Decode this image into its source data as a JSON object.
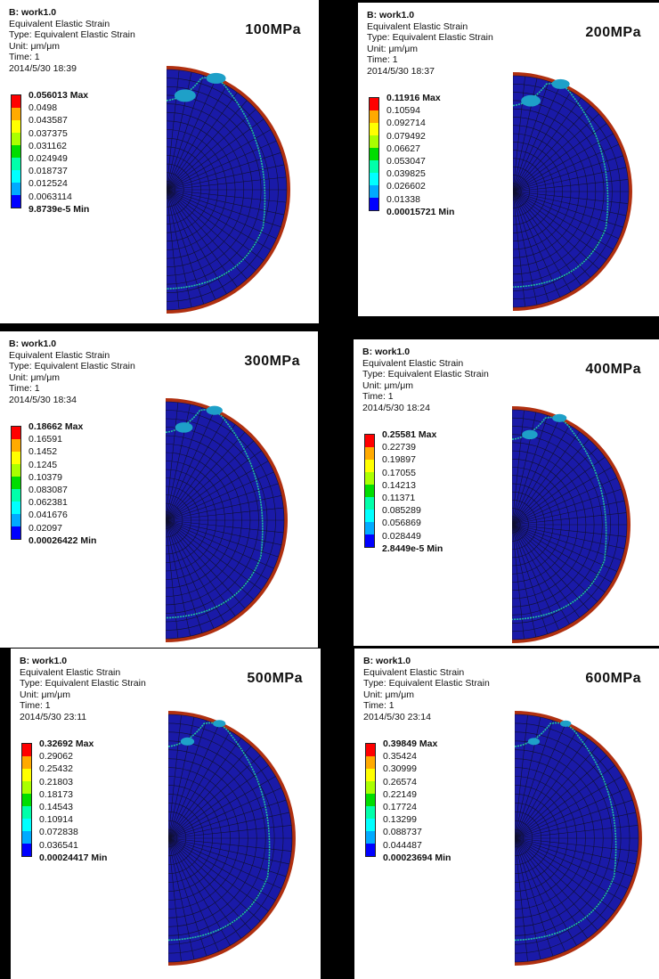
{
  "header": {
    "result": "B: work1.0",
    "name": "Equivalent Elastic Strain",
    "type": "Type: Equivalent Elastic Strain",
    "unit": "Unit: μm/μm",
    "time": "Time: 1"
  },
  "legend_colors": [
    "#ff0000",
    "#ffaa00",
    "#ffff00",
    "#aaff00",
    "#00dd00",
    "#00ffaa",
    "#00ffff",
    "#00aaff",
    "#0000ff"
  ],
  "mesh_colors": {
    "body": "#1a1aa8",
    "rim": "#b03010",
    "band": "#20c0a0",
    "hotspot": "#1ea0c8",
    "line": "#101030"
  },
  "panels": [
    {
      "label": "100MPa",
      "date": "2014/5/30 18:39",
      "max": "0.056013 Max",
      "levels": [
        "0.0498",
        "0.043587",
        "0.037375",
        "0.031162",
        "0.024949",
        "0.018737",
        "0.012524",
        "0.0063114"
      ],
      "min": "9.8739e-5 Min"
    },
    {
      "label": "200MPa",
      "date": "2014/5/30 18:37",
      "max": "0.11916 Max",
      "levels": [
        "0.10594",
        "0.092714",
        "0.079492",
        "0.06627",
        "0.053047",
        "0.039825",
        "0.026602",
        "0.01338"
      ],
      "min": "0.00015721 Min"
    },
    {
      "label": "300MPa",
      "date": "2014/5/30 18:34",
      "max": "0.18662 Max",
      "levels": [
        "0.16591",
        "0.1452",
        "0.1245",
        "0.10379",
        "0.083087",
        "0.062381",
        "0.041676",
        "0.02097"
      ],
      "min": "0.00026422 Min"
    },
    {
      "label": "400MPa",
      "date": "2014/5/30 18:24",
      "max": "0.25581 Max",
      "levels": [
        "0.22739",
        "0.19897",
        "0.17055",
        "0.14213",
        "0.11371",
        "0.085289",
        "0.056869",
        "0.028449"
      ],
      "min": "2.8449e-5 Min"
    },
    {
      "label": "500MPa",
      "date": "2014/5/30 23:11",
      "max": "0.32692 Max",
      "levels": [
        "0.29062",
        "0.25432",
        "0.21803",
        "0.18173",
        "0.14543",
        "0.10914",
        "0.072838",
        "0.036541"
      ],
      "min": "0.00024417 Min"
    },
    {
      "label": "600MPa",
      "date": "2014/5/30 23:14",
      "max": "0.39849 Max",
      "levels": [
        "0.35424",
        "0.30999",
        "0.26574",
        "0.22149",
        "0.17724",
        "0.13299",
        "0.088737",
        "0.044487"
      ],
      "min": "0.00023694 Min"
    }
  ]
}
